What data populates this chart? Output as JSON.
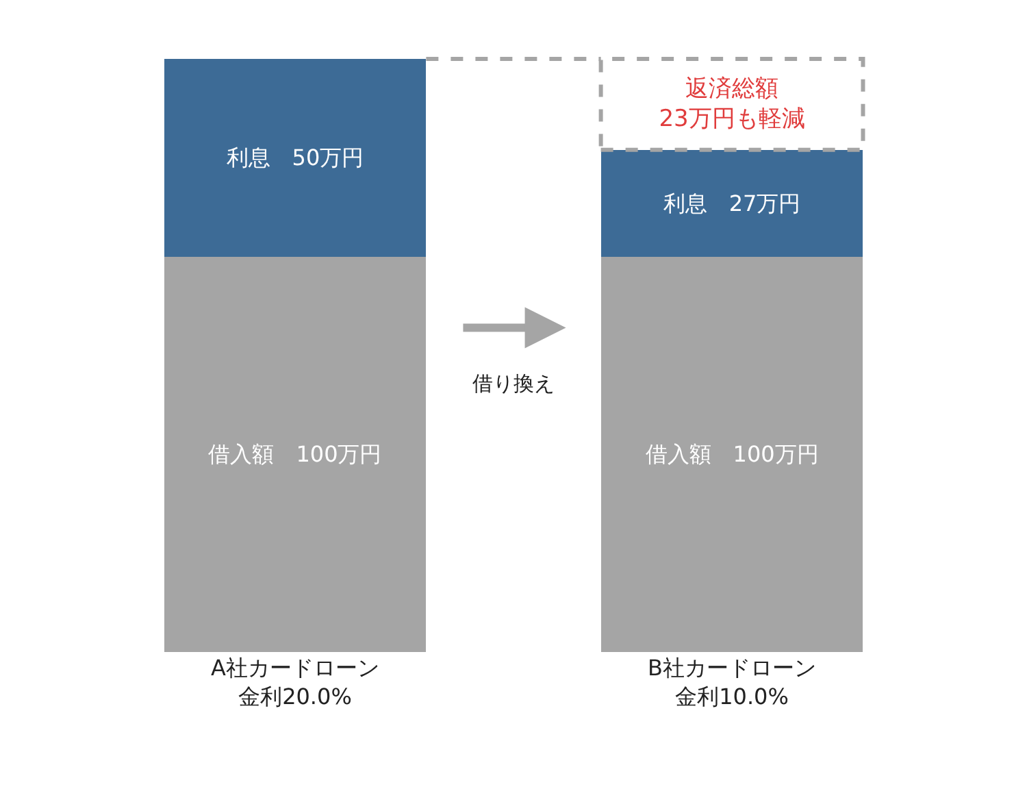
{
  "chart_data": {
    "type": "bar",
    "stacked": true,
    "categories": [
      "A社カードローン金利20.0%",
      "B社カードローン金利10.0%"
    ],
    "series": [
      {
        "color": "#a5a5a5",
        "values": [
          100,
          100
        ],
        "value_labels": [
          "借入額　100万円",
          "借入額　100万円"
        ]
      },
      {
        "color": "#3d6b96",
        "values": [
          50,
          27
        ],
        "value_labels": [
          "利息　50万円",
          "利息　27万円"
        ]
      },
      {
        "color": "#ffffff",
        "values": [
          null,
          23
        ],
        "value_labels": [
          null,
          "返済総額\n23万円も軽減"
        ],
        "line_style": "dashed"
      }
    ],
    "annotations": [
      "借り換え"
    ]
  }
}
